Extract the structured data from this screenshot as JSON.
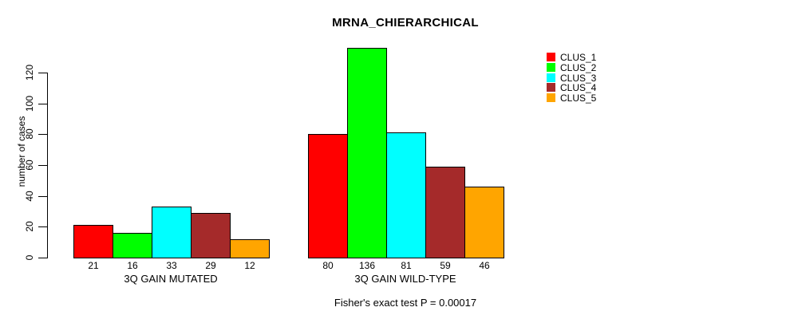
{
  "chart_data": {
    "type": "bar",
    "title": "MRNA_CHIERARCHICAL",
    "ylabel": "number of cases",
    "xlabel": "",
    "annotation": "Fisher's exact test P = 0.00017",
    "categories": [
      "3Q GAIN MUTATED",
      "3Q GAIN WILD-TYPE"
    ],
    "series": [
      {
        "name": "CLUS_1",
        "color": "#ff0000",
        "values": [
          21,
          80
        ]
      },
      {
        "name": "CLUS_2",
        "color": "#00ff00",
        "values": [
          16,
          136
        ]
      },
      {
        "name": "CLUS_3",
        "color": "#00ffff",
        "values": [
          33,
          81
        ]
      },
      {
        "name": "CLUS_4",
        "color": "#a52a2a",
        "values": [
          29,
          59
        ]
      },
      {
        "name": "CLUS_5",
        "color": "#ffa500",
        "values": [
          12,
          46
        ]
      }
    ],
    "yticks": [
      0,
      20,
      40,
      60,
      80,
      100,
      120
    ],
    "ylim": [
      0,
      136
    ],
    "bar_value_labels_shown": true,
    "grid": false,
    "legend_position": "right-outside",
    "background": "#ffffff",
    "bar_border_color": "#000000",
    "text_color": "#000000"
  }
}
